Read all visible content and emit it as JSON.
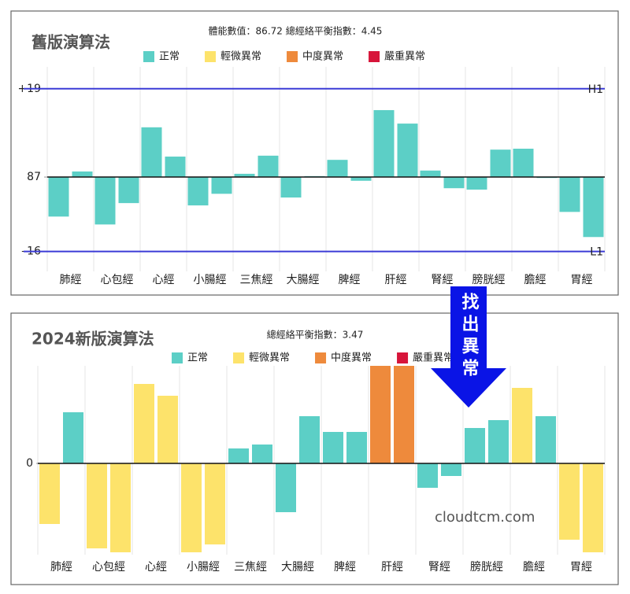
{
  "chart_data": [
    {
      "type": "bar",
      "title": "舊版演算法",
      "subtitle": "體能數值：86.72 總經絡平衡指數：4.45",
      "legend": [
        {
          "name": "正常",
          "color": "#5ccfc6"
        },
        {
          "name": "輕微異常",
          "color": "#fde36b"
        },
        {
          "name": "中度異常",
          "color": "#ee8a3c"
        },
        {
          "name": "嚴重異常",
          "color": "#d7153a"
        }
      ],
      "categories": [
        "肺經",
        "心包經",
        "心經",
        "小腸經",
        "三焦經",
        "大腸經",
        "脾經",
        "肝經",
        "腎經",
        "膀胱經",
        "膽經",
        "胃經"
      ],
      "series": [
        {
          "values": [
            -8.5,
            -10.2,
            10.7,
            -6.1,
            0.7,
            -4.4,
            3.7,
            14.4,
            1.4,
            -2.7,
            6.1,
            -7.5
          ],
          "status": [
            0,
            0,
            0,
            0,
            0,
            0,
            0,
            0,
            0,
            0,
            0,
            0
          ]
        },
        {
          "values": [
            1.2,
            -5.6,
            4.4,
            -3.6,
            4.6,
            0.2,
            -0.8,
            11.5,
            -2.4,
            5.9,
            -0.2,
            -12.9
          ],
          "status": [
            0,
            0,
            0,
            0,
            0,
            0,
            0,
            0,
            0,
            0,
            0,
            0
          ]
        }
      ],
      "ylim": [
        -20.3,
        23.7
      ],
      "yticks": [
        {
          "value": 19,
          "label": "+19"
        },
        {
          "value": 0,
          "label": "87"
        },
        {
          "value": -16,
          "label": "–16"
        }
      ],
      "reference_lines": [
        {
          "value": 19,
          "label": "H1",
          "color": "#3b3bd6"
        },
        {
          "value": -16,
          "label": "L1",
          "color": "#3b3bd6"
        }
      ]
    },
    {
      "type": "bar",
      "title": "2024新版演算法",
      "subtitle": "總經絡平衡指數：3.47",
      "legend": [
        {
          "name": "正常",
          "color": "#5ccfc6"
        },
        {
          "name": "輕微異常",
          "color": "#fde36b"
        },
        {
          "name": "中度異常",
          "color": "#ee8a3c"
        },
        {
          "name": "嚴重異常",
          "color": "#d7153a"
        }
      ],
      "categories": [
        "肺經",
        "心包經",
        "心經",
        "小腸經",
        "三焦經",
        "大腸經",
        "脾經",
        "肝經",
        "腎經",
        "膀胱經",
        "膽經",
        "胃經"
      ],
      "series": [
        {
          "values": [
            -7.7,
            -10.8,
            10.1,
            -11.3,
            1.9,
            -6.2,
            4.0,
            12.4,
            -3.1,
            4.5,
            9.6,
            -9.7
          ],
          "status": [
            1,
            1,
            1,
            1,
            0,
            0,
            0,
            2,
            0,
            0,
            1,
            1
          ]
        },
        {
          "values": [
            6.5,
            -11.3,
            8.6,
            -10.3,
            2.4,
            6.0,
            4.0,
            12.4,
            -1.6,
            5.5,
            6.0,
            -11.3
          ],
          "status": [
            0,
            1,
            1,
            1,
            0,
            0,
            0,
            2,
            0,
            0,
            0,
            1
          ]
        }
      ],
      "ylim": [
        -11.6,
        12.4
      ],
      "yticks": [
        0
      ],
      "reference_lines": []
    }
  ],
  "annotation": "找出異常",
  "watermark": "cloudtcm.com"
}
